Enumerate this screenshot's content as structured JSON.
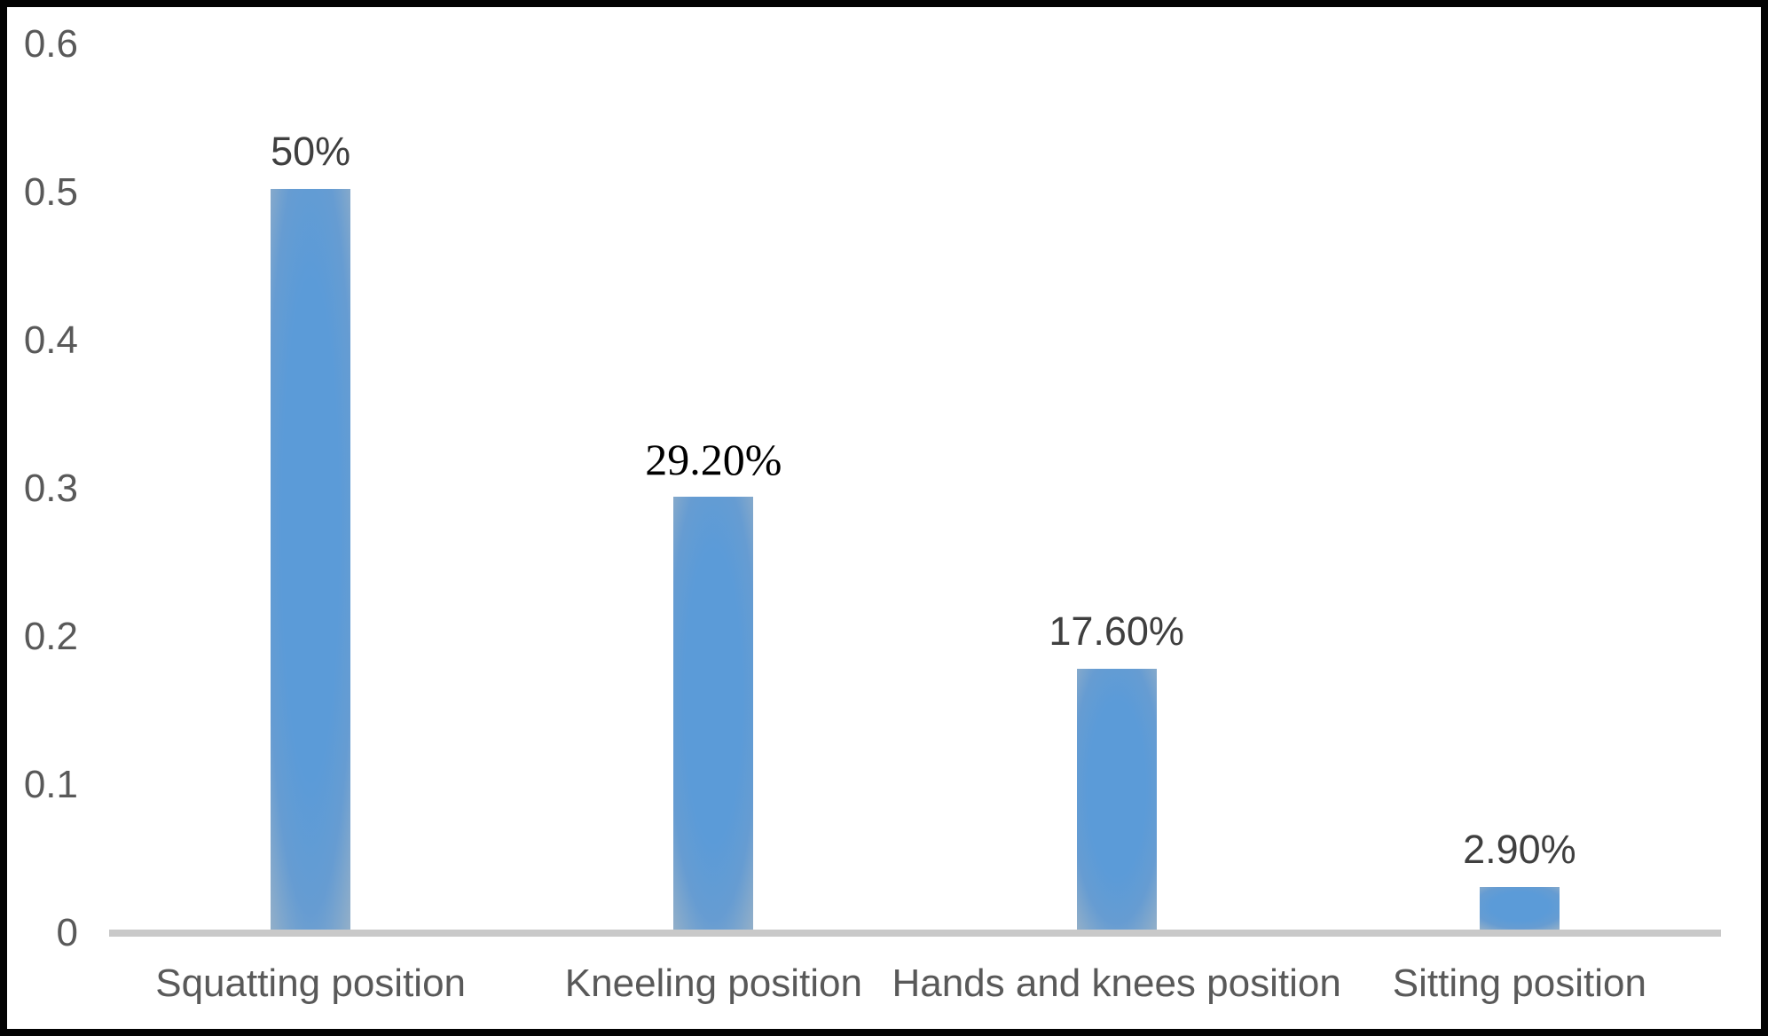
{
  "chart_data": {
    "type": "bar",
    "title": "",
    "xlabel": "",
    "ylabel": "",
    "categories": [
      "Squatting position",
      "Kneeling position",
      "Hands and knees position",
      "Sitting position"
    ],
    "values": [
      0.5,
      0.292,
      0.176,
      0.029
    ],
    "data_labels": [
      "50%",
      "29.20%",
      "17.60%",
      "2.90%"
    ],
    "data_label_fonts": [
      "sans",
      "serif",
      "sans",
      "sans"
    ],
    "ylim": [
      0,
      0.6
    ],
    "yticks": [
      0,
      0.1,
      0.2,
      0.3,
      0.4,
      0.5,
      0.6
    ],
    "ytick_labels": [
      "0",
      "0.1",
      "0.2",
      "0.3",
      "0.4",
      "0.5",
      "0.6"
    ],
    "grid": false,
    "legend": false,
    "bar_color": "#5b9bd8",
    "bar_edge_color": "#90aec9",
    "axis_line_color": "#c9c9c9",
    "tick_label_color": "#595959",
    "data_label_color": "#3f3f3f",
    "serif_label_color": "#000000",
    "frame_border_color": "#030303"
  }
}
